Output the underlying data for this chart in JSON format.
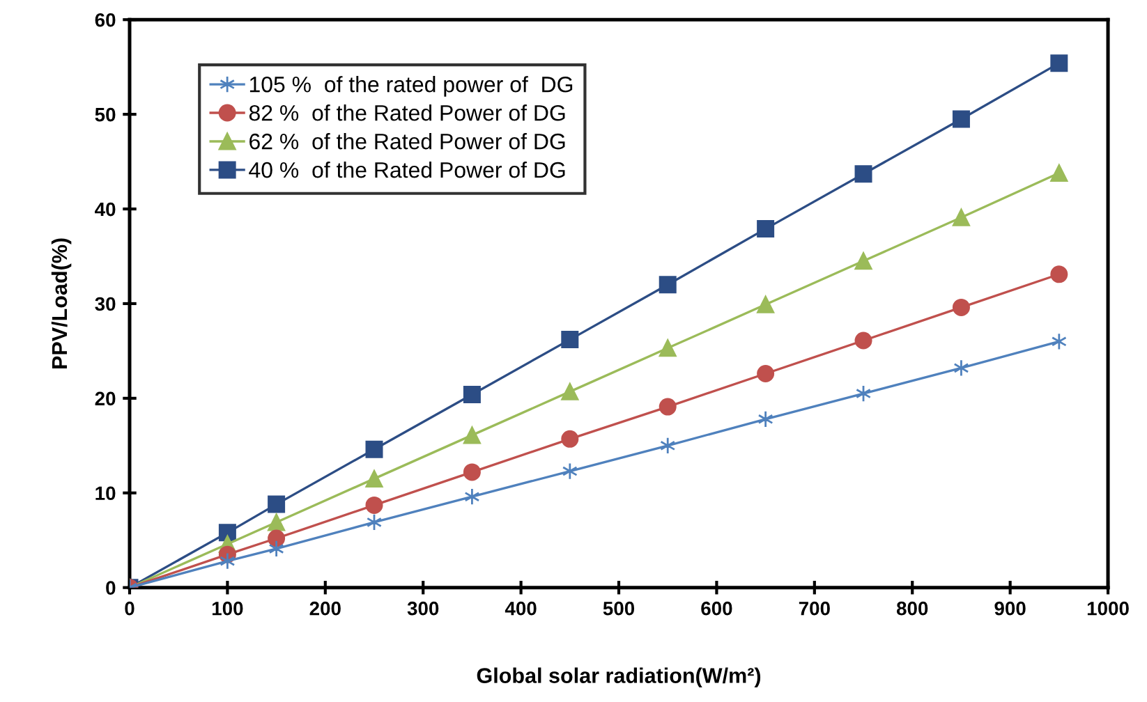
{
  "chart_data": {
    "type": "line",
    "xlabel": "Global solar radiation(W/m²)",
    "ylabel": "PPV/Load(%)",
    "x": [
      0,
      100,
      150,
      250,
      350,
      450,
      550,
      650,
      750,
      850,
      950
    ],
    "xlim": [
      0,
      1000
    ],
    "xticks": [
      0,
      100,
      200,
      300,
      400,
      500,
      600,
      700,
      800,
      900,
      1000
    ],
    "ylim": [
      0,
      60
    ],
    "yticks": [
      0,
      10,
      20,
      30,
      40,
      50,
      60
    ],
    "grid": false,
    "legend": "top left",
    "line_style": "solid",
    "series": [
      {
        "name": "105 %  of the rated power of  DG",
        "color": "#4f81bd",
        "marker": "cross",
        "values": [
          0,
          2.8,
          4.1,
          6.9,
          9.6,
          12.3,
          15.0,
          17.8,
          20.5,
          23.2,
          26.0
        ]
      },
      {
        "name": "82 %  of the Rated Power of DG",
        "color": "#c0504d",
        "marker": "circle",
        "values": [
          0,
          3.5,
          5.2,
          8.7,
          12.2,
          15.7,
          19.1,
          22.6,
          26.1,
          29.6,
          33.1
        ]
      },
      {
        "name": "62 %  of the Rated Power of DG",
        "color": "#9bbb59",
        "marker": "triangle",
        "values": [
          0,
          4.6,
          6.9,
          11.5,
          16.1,
          20.7,
          25.3,
          29.9,
          34.5,
          39.1,
          43.8
        ]
      },
      {
        "name": "40 %  of the Rated Power of DG",
        "color": "#2c4d85",
        "marker": "square",
        "values": [
          0,
          5.8,
          8.8,
          14.6,
          20.4,
          26.2,
          32.0,
          37.9,
          43.7,
          49.5,
          55.4
        ]
      }
    ]
  }
}
